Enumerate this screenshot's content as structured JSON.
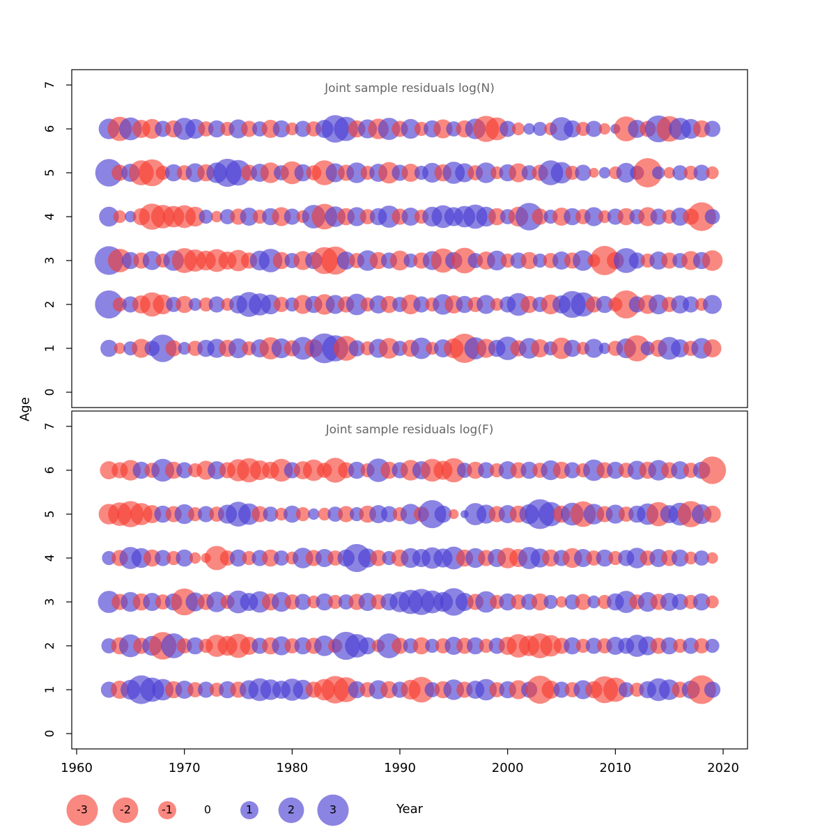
{
  "figure": {
    "colors": {
      "negative": "#f5392d",
      "positive": "#4a3fd1",
      "negative_opacity": 0.6,
      "positive_opacity": 0.64,
      "title": "#666666",
      "axis": "#000000",
      "background": "#ffffff"
    }
  },
  "axes": {
    "x_label": "Year",
    "y_label": "Age",
    "x_ticks": [
      1960,
      1970,
      1980,
      1990,
      2000,
      2010,
      2020
    ],
    "y_ticks": [
      0,
      1,
      2,
      3,
      4,
      5,
      6,
      7
    ]
  },
  "legend": {
    "values": [
      -3,
      -2,
      -1,
      0,
      1,
      2,
      3
    ]
  },
  "chart_data": [
    {
      "type": "bubble",
      "title": "Joint sample residuals log(N)",
      "xlabel": "Year",
      "ylabel": "Age",
      "xlim": [
        1959.5,
        2022.5
      ],
      "ylim": [
        0,
        7
      ],
      "legend_position": "bottom",
      "years": [
        1963,
        1964,
        1965,
        1966,
        1967,
        1968,
        1969,
        1970,
        1971,
        1972,
        1973,
        1974,
        1975,
        1976,
        1977,
        1978,
        1979,
        1980,
        1981,
        1982,
        1983,
        1984,
        1985,
        1986,
        1987,
        1988,
        1989,
        1990,
        1991,
        1992,
        1993,
        1994,
        1995,
        1996,
        1997,
        1998,
        1999,
        2000,
        2001,
        2002,
        2003,
        2004,
        2005,
        2006,
        2007,
        2008,
        2009,
        2010,
        2011,
        2012,
        2013,
        2014,
        2015,
        2016,
        2017,
        2018,
        2019
      ],
      "series": [
        {
          "age": 1,
          "values": [
            0.9,
            -0.4,
            0.6,
            -1.1,
            0.7,
            2.3,
            -0.8,
            0.5,
            -0.7,
            0.9,
            1.1,
            -0.9,
            1.2,
            -0.6,
            1.0,
            -1.5,
            1.2,
            -0.8,
            1.6,
            -1.0,
            2.7,
            2.1,
            -1.9,
            0.8,
            -0.6,
            1.1,
            -1.3,
            0.7,
            -0.9,
            1.4,
            -0.5,
            1.0,
            -1.2,
            -2.6,
            1.5,
            -1.1,
            0.9,
            1.7,
            -0.8,
            1.3,
            -1.0,
            0.6,
            -1.4,
            0.9,
            -0.5,
            1.1,
            0.4,
            -0.7,
            1.2,
            -2.1,
            0.6,
            -0.9,
            1.6,
            1.0,
            -0.7,
            1.3,
            -1.0
          ]
        },
        {
          "age": 2,
          "values": [
            2.4,
            -0.6,
            0.8,
            -1.0,
            -1.8,
            -1.2,
            0.7,
            -0.9,
            0.5,
            -0.6,
            0.8,
            -0.5,
            1.0,
            1.9,
            1.5,
            1.2,
            -0.7,
            0.6,
            -1.1,
            0.9,
            -1.3,
            1.1,
            -0.8,
            1.4,
            -0.6,
            1.0,
            -0.9,
            0.7,
            -1.2,
            0.8,
            -0.6,
            1.3,
            -1.0,
            0.9,
            -0.7,
            1.1,
            -0.5,
            0.8,
            1.6,
            -0.9,
            0.7,
            -1.2,
            1.0,
            2.2,
            1.8,
            -0.8,
            0.9,
            -0.6,
            -2.4,
            0.8,
            -1.1,
            1.2,
            -0.7,
            1.0,
            0.8,
            -0.5,
            1.1
          ]
        },
        {
          "age": 3,
          "values": [
            2.5,
            -1.7,
            0.9,
            -0.8,
            1.1,
            -0.6,
            1.3,
            -1.9,
            -1.5,
            -1.2,
            -1.6,
            -1.0,
            -1.4,
            -0.8,
            1.2,
            1.7,
            -0.9,
            0.7,
            -1.1,
            0.9,
            -2.2,
            -2.4,
            1.0,
            -0.7,
            1.3,
            -0.9,
            0.8,
            -1.2,
            0.6,
            -0.8,
            1.1,
            -1.8,
            0.9,
            -2.0,
            0.7,
            -1.0,
            1.2,
            -0.6,
            0.8,
            -0.9,
            0.6,
            -0.7,
            1.0,
            -0.8,
            1.3,
            -0.5,
            -2.6,
            -0.9,
            1.9,
            0.8,
            -0.6,
            1.0,
            -0.8,
            0.7,
            -1.1,
            0.9,
            -1.3
          ]
        },
        {
          "age": 4,
          "values": [
            1.2,
            -0.5,
            0.4,
            -0.9,
            -2.1,
            -1.7,
            -1.4,
            -1.6,
            -1.2,
            0.6,
            -0.4,
            0.7,
            -0.8,
            1.0,
            -0.6,
            0.9,
            -1.1,
            0.8,
            -0.5,
            1.7,
            -2.0,
            1.3,
            -0.9,
            1.1,
            -0.7,
            0.9,
            1.5,
            -0.8,
            1.0,
            -0.6,
            1.2,
            1.6,
            1.1,
            1.4,
            1.8,
            1.2,
            -0.9,
            0.7,
            -1.2,
            2.3,
            -0.8,
            0.6,
            -1.0,
            0.9,
            -0.7,
            1.1,
            -0.5,
            0.8,
            -0.9,
            0.7,
            -1.1,
            0.8,
            -0.6,
            1.0,
            -0.8,
            -2.5,
            0.7
          ]
        },
        {
          "age": 5,
          "values": [
            2.3,
            -0.8,
            1.0,
            -1.9,
            -2.2,
            -0.6,
            0.9,
            -0.7,
            1.1,
            -0.9,
            1.3,
            2.4,
            2.0,
            -0.8,
            1.0,
            -1.3,
            0.7,
            -1.6,
            0.9,
            -0.7,
            -1.9,
            1.1,
            -0.8,
            1.3,
            -0.6,
            1.0,
            -1.4,
            0.8,
            -1.0,
            0.6,
            1.2,
            -0.9,
            1.5,
            1.1,
            -0.7,
            1.3,
            -0.5,
            0.9,
            -1.1,
            0.7,
            -0.8,
            1.9,
            1.4,
            -0.6,
            0.8,
            -0.3,
            0.4,
            -0.5,
            1.2,
            0.6,
            -2.6,
            0.5,
            -0.4,
            0.7,
            -0.6,
            0.8,
            -0.5
          ]
        },
        {
          "age": 6,
          "values": [
            1.3,
            -1.8,
            1.6,
            -1.0,
            -1.2,
            0.8,
            -0.9,
            1.5,
            1.2,
            -0.7,
            0.9,
            -0.6,
            1.1,
            -0.8,
            0.7,
            -1.0,
            0.9,
            -0.5,
            0.8,
            -0.7,
            1.0,
            2.3,
            1.8,
            -0.9,
            1.1,
            -1.3,
            1.5,
            -0.8,
            1.2,
            -0.6,
            0.9,
            -1.1,
            0.7,
            -0.9,
            1.3,
            -2.1,
            -1.6,
            0.8,
            -0.5,
            0.4,
            0.6,
            -0.5,
            1.7,
            0.9,
            -0.6,
            0.8,
            -0.4,
            0.3,
            -1.9,
            1.0,
            -0.8,
            2.2,
            -2.0,
            1.5,
            1.2,
            -0.9,
            0.8
          ]
        }
      ]
    },
    {
      "type": "bubble",
      "title": "Joint sample residuals log(F)",
      "xlabel": "Year",
      "ylabel": "Age",
      "xlim": [
        1959.5,
        2022.5
      ],
      "ylim": [
        0,
        7
      ],
      "legend_position": "bottom",
      "years": [
        1963,
        1964,
        1965,
        1966,
        1967,
        1968,
        1969,
        1970,
        1971,
        1972,
        1973,
        1974,
        1975,
        1976,
        1977,
        1978,
        1979,
        1980,
        1981,
        1982,
        1983,
        1984,
        1985,
        1986,
        1987,
        1988,
        1989,
        1990,
        1991,
        1992,
        1993,
        1994,
        1995,
        1996,
        1997,
        1998,
        1999,
        2000,
        2001,
        2002,
        2003,
        2004,
        2005,
        2006,
        2007,
        2008,
        2009,
        2010,
        2011,
        2012,
        2013,
        2014,
        2015,
        2016,
        2017,
        2018,
        2019
      ],
      "series": [
        {
          "age": 1,
          "values": [
            0.8,
            -1.0,
            1.2,
            2.5,
            1.8,
            1.4,
            -0.9,
            1.0,
            -0.7,
            0.8,
            -0.6,
            0.9,
            -0.8,
            1.1,
            1.6,
            1.3,
            1.0,
            1.5,
            1.2,
            -0.8,
            -1.4,
            -2.3,
            -1.9,
            0.9,
            -0.7,
            1.1,
            -0.9,
            0.8,
            -1.2,
            -2.0,
            0.7,
            -0.9,
            1.3,
            -0.8,
            1.0,
            1.4,
            -0.7,
            0.9,
            -1.1,
            0.8,
            -2.4,
            -1.0,
            0.8,
            -0.7,
            1.1,
            -0.9,
            -2.2,
            -1.8,
            0.7,
            -0.6,
            0.9,
            1.6,
            1.3,
            -0.8,
            1.0,
            -2.5,
            0.8
          ]
        },
        {
          "age": 2,
          "values": [
            0.7,
            -0.9,
            1.6,
            -0.8,
            1.2,
            -2.3,
            1.9,
            -0.7,
            0.9,
            -0.6,
            -1.5,
            -1.2,
            -1.8,
            -1.0,
            0.8,
            -0.9,
            1.1,
            -0.7,
            0.9,
            -0.8,
            1.3,
            -0.6,
            2.4,
            1.7,
            0.9,
            -0.5,
            1.9,
            -0.8,
            0.7,
            -0.9,
            0.6,
            -0.7,
            1.0,
            -0.8,
            0.9,
            -0.6,
            0.8,
            -1.0,
            -1.7,
            -1.3,
            -1.9,
            -1.4,
            -0.8,
            0.9,
            -0.6,
            0.8,
            -0.7,
            1.0,
            0.8,
            1.5,
            1.1,
            -0.8,
            0.9,
            -0.6,
            0.8,
            -0.7,
            0.6
          ]
        },
        {
          "age": 3,
          "values": [
            1.5,
            -0.8,
            1.2,
            -0.9,
            1.0,
            -0.7,
            0.9,
            -2.2,
            1.1,
            -0.8,
            1.3,
            -0.6,
            1.6,
            1.0,
            1.4,
            -0.9,
            1.2,
            -0.7,
            0.8,
            -0.5,
            0.9,
            -0.6,
            0.7,
            -0.8,
            1.0,
            -0.7,
            0.9,
            1.3,
            1.8,
            2.1,
            1.6,
            1.2,
            2.3,
            1.0,
            -0.8,
            1.4,
            -0.6,
            0.9,
            -0.7,
            0.8,
            -0.9,
            0.6,
            -0.4,
            0.7,
            -0.8,
            0.5,
            -0.6,
            0.9,
            1.5,
            -0.7,
            1.2,
            -0.8,
            1.0,
            0.8,
            -0.6,
            0.9,
            -0.5
          ]
        },
        {
          "age": 4,
          "values": [
            0.6,
            -0.8,
            1.5,
            1.2,
            -0.9,
            0.8,
            -0.6,
            0.9,
            -0.4,
            -0.3,
            -1.8,
            -0.7,
            0.9,
            -0.6,
            0.8,
            -0.9,
            0.7,
            -0.5,
            1.3,
            -0.8,
            1.0,
            -0.7,
            0.9,
            2.4,
            1.1,
            -0.8,
            0.6,
            -0.9,
            1.2,
            1.0,
            1.4,
            1.1,
            1.6,
            -0.9,
            1.2,
            -0.8,
            1.0,
            -1.3,
            -1.0,
            1.5,
            1.1,
            -0.9,
            0.8,
            -1.2,
            1.0,
            -0.7,
            0.9,
            -0.6,
            0.8,
            1.3,
            -0.7,
            1.0,
            -0.8,
            0.9,
            -0.5,
            0.7,
            -0.4
          ]
        },
        {
          "age": 5,
          "values": [
            -1.3,
            -1.7,
            -2.1,
            -1.5,
            -1.0,
            0.9,
            -0.8,
            1.2,
            -0.6,
            0.8,
            -0.7,
            1.1,
            1.9,
            1.4,
            -0.8,
            0.7,
            -0.5,
            0.9,
            -0.6,
            0.4,
            -0.5,
            0.7,
            -0.8,
            0.6,
            -0.9,
            1.0,
            0.8,
            -0.6,
            1.3,
            -0.7,
            2.4,
            0.9,
            -0.3,
            0.2,
            1.5,
            1.1,
            -0.8,
            1.0,
            -0.9,
            1.2,
            2.7,
            1.8,
            -0.9,
            1.6,
            -2.0,
            1.3,
            -0.8,
            1.1,
            -0.7,
            0.9,
            1.4,
            -1.8,
            1.0,
            1.6,
            -2.1,
            1.2,
            -0.9
          ]
        },
        {
          "age": 6,
          "values": [
            -1.0,
            -0.8,
            -1.3,
            0.9,
            -0.7,
            1.6,
            -0.9,
            0.8,
            -0.6,
            -1.1,
            1.0,
            -0.8,
            -1.5,
            -1.8,
            -1.2,
            -0.9,
            -1.6,
            0.8,
            -1.0,
            -1.4,
            -0.7,
            -1.9,
            -0.8,
            0.9,
            -0.6,
            1.7,
            -0.9,
            0.8,
            -1.3,
            1.0,
            -1.6,
            -1.1,
            -1.8,
            0.7,
            -0.9,
            0.8,
            -0.6,
            1.0,
            -0.8,
            0.9,
            -0.7,
            1.2,
            -0.9,
            0.8,
            -0.6,
            1.4,
            -0.8,
            0.9,
            -0.7,
            1.1,
            -0.9,
            1.3,
            -0.8,
            1.0,
            -0.7,
            0.9,
            -2.3
          ]
        }
      ]
    }
  ]
}
